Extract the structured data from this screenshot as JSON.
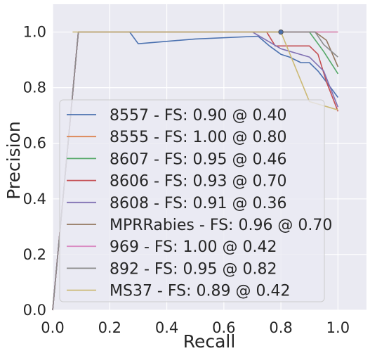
{
  "chart_data": {
    "type": "line",
    "title": "",
    "xlabel": "Recall",
    "ylabel": "Precision",
    "xlim": [
      0.0,
      1.1
    ],
    "ylim": [
      0.0,
      1.1
    ],
    "xticks": [
      "0.0",
      "0.2",
      "0.4",
      "0.6",
      "0.8",
      "1.0"
    ],
    "yticks": [
      "0.0",
      "0.2",
      "0.4",
      "0.6",
      "0.8",
      "1.0"
    ],
    "grid": true,
    "background": "#eaeaf2",
    "legend_position": "lower-left",
    "series": [
      {
        "name": "8557 - FS: 0.90 @ 0.40",
        "color": "#4c72b0",
        "x": [
          0.0,
          0.09,
          0.27,
          0.3,
          0.5,
          0.72,
          0.76,
          0.8,
          0.83,
          0.87,
          0.9,
          0.93,
          0.96,
          1.0
        ],
        "y": [
          0.0,
          1.0,
          1.0,
          0.958,
          0.975,
          0.985,
          0.95,
          0.92,
          0.91,
          0.89,
          0.89,
          0.86,
          0.82,
          0.765
        ]
      },
      {
        "name": "8555 - FS: 1.00 @ 0.80",
        "color": "#dd8452",
        "x": [
          0.0,
          0.09,
          0.8,
          1.0
        ],
        "y": [
          0.0,
          1.0,
          1.0,
          1.0
        ]
      },
      {
        "name": "8607 - FS: 0.95 @ 0.46",
        "color": "#55a868",
        "x": [
          0.0,
          0.09,
          0.9,
          0.95,
          1.0
        ],
        "y": [
          0.0,
          1.0,
          1.0,
          0.93,
          0.85
        ]
      },
      {
        "name": "8606 - FS: 0.93 @ 0.70",
        "color": "#c44e52",
        "x": [
          0.0,
          0.09,
          0.75,
          0.78,
          0.9,
          0.93,
          0.96,
          1.0
        ],
        "y": [
          0.0,
          1.0,
          1.0,
          0.95,
          0.95,
          0.92,
          0.82,
          0.715
        ]
      },
      {
        "name": "8608 - FS: 0.91 @ 0.36",
        "color": "#8172b3",
        "x": [
          0.0,
          0.09,
          0.7,
          0.8,
          0.9,
          0.95,
          1.0
        ],
        "y": [
          0.0,
          1.0,
          1.0,
          0.94,
          0.91,
          0.86,
          0.73
        ]
      },
      {
        "name": "MPRRabies - FS: 0.96 @ 0.70",
        "color": "#937860",
        "x": [
          0.0,
          0.09,
          0.92,
          0.96,
          1.0
        ],
        "y": [
          0.0,
          1.0,
          1.0,
          0.97,
          0.875
        ]
      },
      {
        "name": "969 - FS: 1.00 @ 0.42",
        "color": "#da8bc3",
        "x": [
          0.0,
          0.09,
          0.8,
          1.0
        ],
        "y": [
          0.0,
          1.0,
          1.0,
          1.0
        ]
      },
      {
        "name": "892 - FS: 0.95 @ 0.82",
        "color": "#8c8c8c",
        "x": [
          0.0,
          0.09,
          0.92,
          0.95,
          1.0
        ],
        "y": [
          0.0,
          1.0,
          1.0,
          0.955,
          0.91
        ]
      },
      {
        "name": "MS37 - FS: 0.89 @ 0.42",
        "color": "#ccb974",
        "x": [
          0.07,
          0.8,
          0.9,
          1.0
        ],
        "y": [
          1.0,
          1.0,
          0.75,
          0.72
        ]
      }
    ],
    "marker": {
      "x": 0.8,
      "y": 1.0
    }
  }
}
